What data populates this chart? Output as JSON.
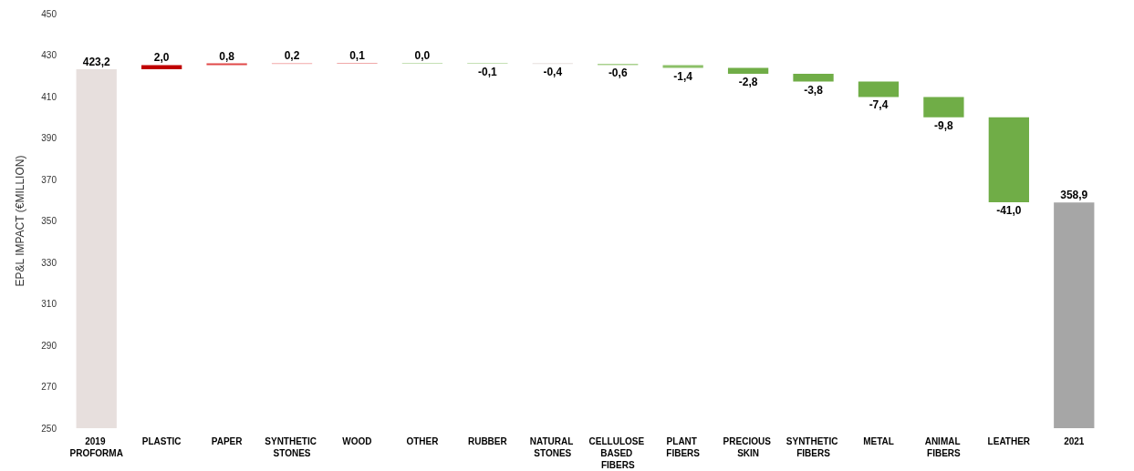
{
  "chart_data": {
    "type": "bar",
    "ylabel": "EP&L IMPACT (€MILLION)",
    "categories": [
      "2019 PROFORMA",
      "PLASTIC",
      "PAPER",
      "SYNTHETIC STONES",
      "WOOD",
      "OTHER",
      "RUBBER",
      "NATURAL STONES",
      "CELLULOSE BASED FIBERS",
      "PLANT FIBERS",
      "PRECIOUS SKIN",
      "SYNTHETIC FIBERS",
      "METAL",
      "ANIMAL FIBERS",
      "LEATHER",
      "2021"
    ],
    "values": [
      423.2,
      2.0,
      0.8,
      0.2,
      0.1,
      0.0,
      -0.1,
      -0.4,
      -0.6,
      -1.4,
      -2.8,
      -3.8,
      -7.4,
      -9.8,
      -41.0,
      358.9
    ],
    "base": [
      null,
      423.2,
      425.2,
      426.0,
      426.2,
      426.3,
      426.3,
      426.2,
      425.8,
      425.2,
      423.8,
      421.0,
      417.2,
      409.8,
      400.0,
      null
    ],
    "colors": [
      "#e7dfdd",
      "#c00000",
      "#e04848",
      "#f2a8a8",
      "#f0a8a8",
      "#c5e0b4",
      "#c5e0b4",
      "#e7dfdd",
      "#a9d18e",
      "#8cc068",
      "#70ad47",
      "#70ad47",
      "#70ad47",
      "#70ad47",
      "#70ad47",
      "#a6a6a6"
    ],
    "value_labels": [
      "423,2",
      "2,0",
      "0,8",
      "0,2",
      "0,1",
      "0,0",
      "-0,1",
      "-0,4",
      "-0,6",
      "-1,4",
      "-2,8",
      "-3,8",
      "-7,4",
      "-9,8",
      "-41,0",
      "358,9"
    ],
    "ylim": [
      250,
      450
    ],
    "yticks": [
      250,
      270,
      290,
      310,
      330,
      350,
      370,
      390,
      410,
      430,
      450
    ],
    "grid": false
  }
}
